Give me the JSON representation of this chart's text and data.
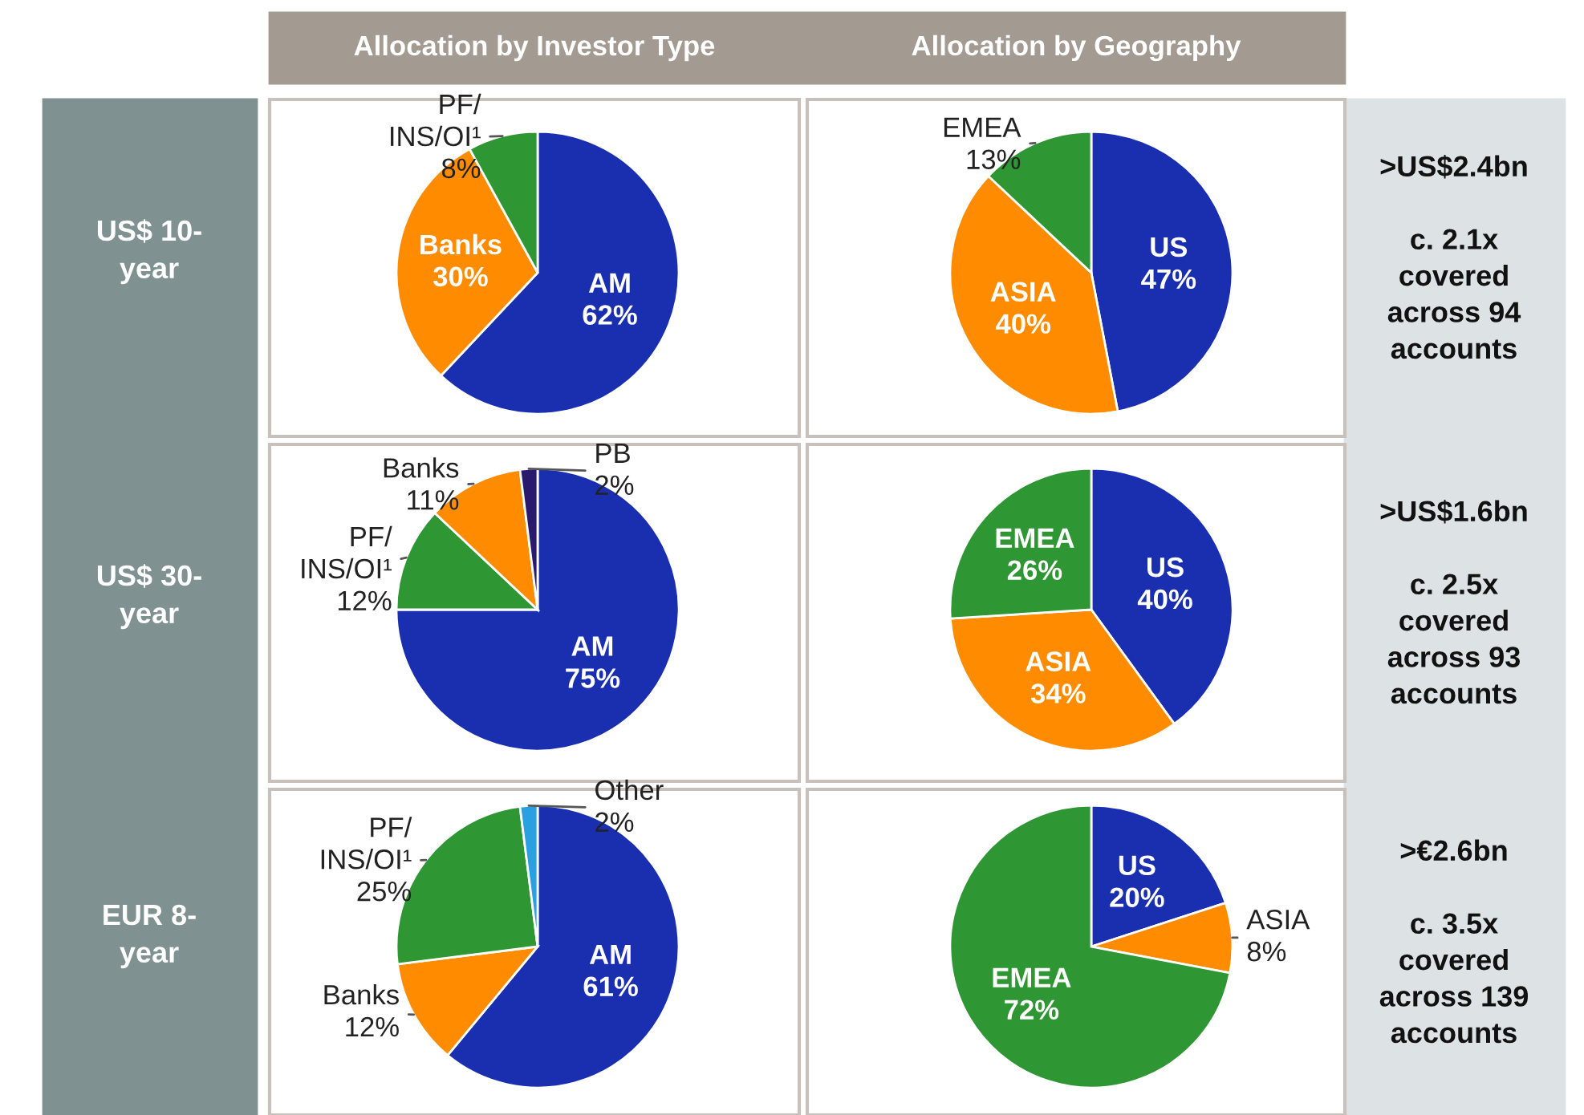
{
  "chart_data": [
    {
      "type": "other",
      "annotations": [
        "Allocation by Investor Type",
        "Allocation by Geography",
        "US$ 10-\nyear",
        "US$ 30-\nyear",
        "EUR 8-\nyear",
        ">US$2.4bn\n\nc. 2.1x\ncovered\nacross 94\naccounts",
        ">US$1.6bn\n\nc. 2.5x\ncovered\nacross 93\naccounts",
        ">€2.6bn\n\nc. 3.5x\ncovered\nacross 139\naccounts"
      ]
    },
    {
      "type": "pie",
      "categories": [
        "AM",
        "Banks",
        "PF/\nINS/OI¹"
      ],
      "values": [
        62,
        30,
        8
      ],
      "colors": [
        "#1a2fb0",
        "#ff8c00",
        "#2e9632"
      ],
      "value_labels": [
        "62%",
        "30%",
        "8%"
      ]
    },
    {
      "type": "pie",
      "categories": [
        "US",
        "ASIA",
        "EMEA"
      ],
      "values": [
        47,
        40,
        13
      ],
      "colors": [
        "#1a2fb0",
        "#ff8c00",
        "#2e9632"
      ],
      "value_labels": [
        "47%",
        "40%",
        "13%"
      ]
    },
    {
      "type": "pie",
      "categories": [
        "AM",
        "PF/\nINS/OI¹",
        "Banks",
        "PB"
      ],
      "values": [
        75,
        12,
        11,
        2
      ],
      "colors": [
        "#1a2fb0",
        "#2e9632",
        "#ff8c00",
        "#2a1a6e"
      ],
      "value_labels": [
        "75%",
        "12%",
        "11%",
        "2%"
      ]
    },
    {
      "type": "pie",
      "categories": [
        "US",
        "ASIA",
        "EMEA"
      ],
      "values": [
        40,
        34,
        26
      ],
      "colors": [
        "#1a2fb0",
        "#ff8c00",
        "#2e9632"
      ],
      "value_labels": [
        "40%",
        "34%",
        "26%"
      ]
    },
    {
      "type": "pie",
      "categories": [
        "AM",
        "Banks",
        "PF/\nINS/OI¹",
        "Other"
      ],
      "values": [
        61,
        12,
        25,
        2
      ],
      "colors": [
        "#1a2fb0",
        "#ff8c00",
        "#2e9632",
        "#2aa0e0"
      ],
      "value_labels": [
        "61%",
        "12%",
        "25%",
        "2%"
      ]
    },
    {
      "type": "pie",
      "categories": [
        "US",
        "ASIA",
        "EMEA"
      ],
      "values": [
        20,
        8,
        72
      ],
      "colors": [
        "#1a2fb0",
        "#ff8c00",
        "#2e9632"
      ],
      "value_labels": [
        "20%",
        "8%",
        "72%"
      ]
    }
  ]
}
